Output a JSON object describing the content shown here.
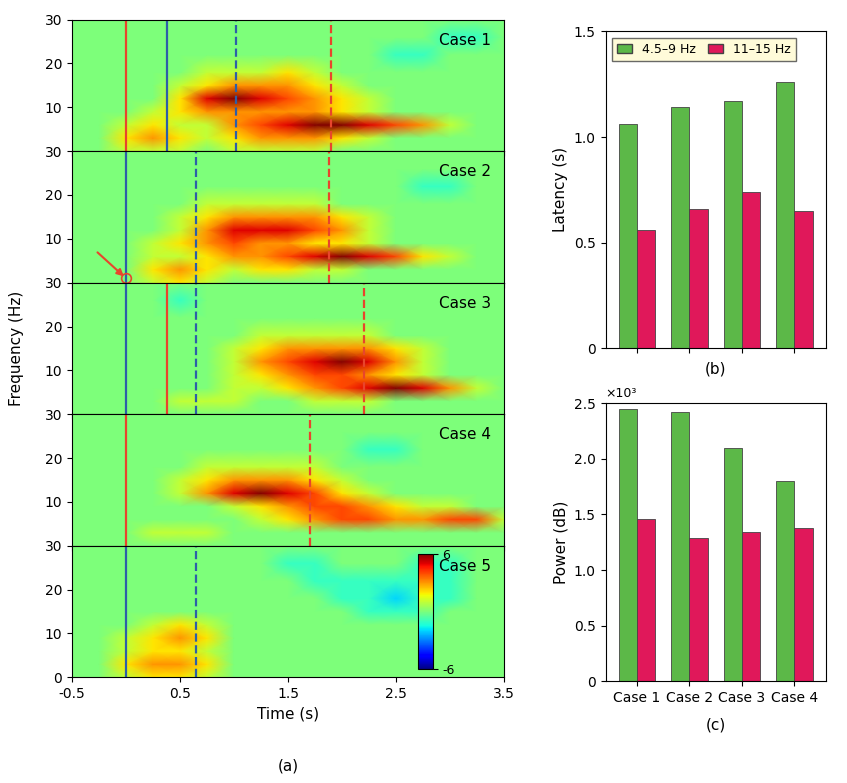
{
  "chart_data": [
    {
      "type": "heatmap",
      "title": "Case 1",
      "tick_labels": "y",
      "xlim": [
        -0.5,
        3.5
      ],
      "xticks": [
        -0.5,
        0.5,
        1.5,
        2.5,
        3.5
      ],
      "ylim": [
        0,
        30
      ],
      "yticks": [
        10,
        20,
        30
      ],
      "x": [
        -0.5,
        -0.25,
        0,
        0.25,
        0.5,
        0.75,
        1.0,
        1.25,
        1.5,
        1.75,
        2.0,
        2.25,
        2.5,
        2.75,
        3.0,
        3.25,
        3.5
      ],
      "y": [
        0,
        3,
        6,
        9,
        12,
        15,
        18,
        22,
        26,
        30
      ],
      "cells": [
        [
          0,
          0,
          1,
          1,
          1,
          0,
          1,
          1,
          1,
          1,
          0,
          0,
          0,
          0,
          0,
          0,
          0
        ],
        [
          0,
          0,
          2,
          3,
          2,
          1,
          2,
          3,
          3,
          3,
          2,
          1,
          0,
          0,
          0,
          0,
          0
        ],
        [
          0,
          0,
          1,
          2,
          1,
          1,
          3,
          4,
          5,
          6,
          6,
          5,
          4,
          3,
          1,
          0,
          0
        ],
        [
          0,
          0,
          0,
          1,
          2,
          3,
          3,
          3,
          3,
          3,
          2,
          1,
          0,
          0,
          0,
          0,
          0
        ],
        [
          0,
          0,
          0,
          0,
          2,
          5,
          6,
          5,
          4,
          3,
          2,
          1,
          0,
          0,
          0,
          0,
          0
        ],
        [
          0,
          0,
          0,
          0,
          1,
          2,
          3,
          3,
          3,
          2,
          1,
          0,
          0,
          0,
          0,
          0,
          0
        ],
        [
          0,
          0,
          0,
          0,
          0,
          1,
          1,
          1,
          2,
          1,
          0,
          0,
          0,
          0,
          0,
          0,
          0
        ],
        [
          0,
          0,
          0,
          0,
          0,
          0,
          0,
          0,
          0,
          0,
          0,
          0,
          -1,
          -1,
          0,
          0,
          0
        ],
        [
          0,
          0,
          0,
          0,
          0,
          0,
          0,
          0,
          0,
          0,
          0,
          0,
          0,
          0,
          -1,
          -1,
          0
        ],
        [
          0,
          0,
          0,
          0,
          0,
          0,
          0,
          0,
          0,
          0,
          0,
          0,
          0,
          0,
          0,
          0,
          0
        ]
      ],
      "lines": [
        {
          "x": 0,
          "color": "#e8452c",
          "line_style": "solid"
        },
        {
          "x": 0.38,
          "color": "#2d5fa8",
          "line_style": "solid"
        },
        {
          "x": 1.02,
          "color": "#2d5fa8",
          "line_style": "dashed"
        },
        {
          "x": 1.9,
          "color": "#e8452c",
          "line_style": "dashed"
        }
      ]
    },
    {
      "type": "heatmap",
      "title": "Case 2",
      "tick_labels": "y",
      "xlim": [
        -0.5,
        3.5
      ],
      "xticks": [
        -0.5,
        0.5,
        1.5,
        2.5,
        3.5
      ],
      "ylim": [
        0,
        30
      ],
      "yticks": [
        10,
        20,
        30
      ],
      "x": [
        -0.5,
        -0.25,
        0,
        0.25,
        0.5,
        0.75,
        1.0,
        1.25,
        1.5,
        1.75,
        2.0,
        2.25,
        2.5,
        2.75,
        3.0,
        3.25,
        3.5
      ],
      "y": [
        0,
        3,
        6,
        9,
        12,
        15,
        18,
        22,
        26,
        30
      ],
      "cells": [
        [
          0,
          0,
          0,
          1,
          2,
          1,
          0,
          0,
          0,
          0,
          0,
          0,
          0,
          0,
          0,
          0,
          0
        ],
        [
          0,
          0,
          0,
          2,
          3,
          2,
          1,
          2,
          2,
          1,
          1,
          0,
          0,
          0,
          0,
          0,
          0
        ],
        [
          0,
          0,
          0,
          1,
          1,
          2,
          3,
          3,
          4,
          5,
          6,
          5,
          4,
          2,
          1,
          0,
          0
        ],
        [
          0,
          0,
          0,
          1,
          2,
          3,
          4,
          3,
          3,
          2,
          2,
          1,
          0,
          0,
          0,
          0,
          0
        ],
        [
          0,
          0,
          0,
          0,
          1,
          3,
          5,
          5,
          5,
          4,
          3,
          1,
          0,
          0,
          0,
          0,
          0
        ],
        [
          0,
          0,
          0,
          0,
          1,
          2,
          3,
          3,
          3,
          3,
          2,
          1,
          0,
          0,
          0,
          0,
          0
        ],
        [
          0,
          0,
          0,
          0,
          0,
          1,
          1,
          1,
          1,
          1,
          0,
          0,
          0,
          0,
          0,
          0,
          0
        ],
        [
          0,
          0,
          0,
          0,
          0,
          0,
          0,
          0,
          0,
          0,
          0,
          0,
          0,
          -1,
          -1,
          0,
          0
        ],
        [
          0,
          0,
          0,
          0,
          0,
          0,
          0,
          0,
          0,
          0,
          0,
          0,
          0,
          0,
          0,
          0,
          0
        ],
        [
          0,
          0,
          0,
          0,
          0,
          0,
          0,
          0,
          0,
          0,
          0,
          0,
          0,
          0,
          0,
          0,
          0
        ]
      ],
      "lines": [
        {
          "x": 0,
          "color": "#2d5fa8",
          "line_style": "solid"
        },
        {
          "x": 0.65,
          "color": "#2d5fa8",
          "line_style": "dashed"
        },
        {
          "x": 1.88,
          "color": "#e8452c",
          "line_style": "dashed"
        }
      ],
      "highlight": {
        "x": 0,
        "y": 1,
        "color": "#e8452c"
      }
    },
    {
      "type": "heatmap",
      "title": "Case 3",
      "tick_labels": "y",
      "ylabel": "Frequency (Hz)",
      "xlim": [
        -0.5,
        3.5
      ],
      "xticks": [
        -0.5,
        0.5,
        1.5,
        2.5,
        3.5
      ],
      "ylim": [
        0,
        30
      ],
      "yticks": [
        10,
        20,
        30
      ],
      "x": [
        -0.5,
        -0.25,
        0,
        0.25,
        0.5,
        0.75,
        1.0,
        1.25,
        1.5,
        1.75,
        2.0,
        2.25,
        2.5,
        2.75,
        3.0,
        3.25,
        3.5
      ],
      "y": [
        0,
        3,
        6,
        9,
        12,
        15,
        18,
        22,
        26,
        30
      ],
      "cells": [
        [
          0,
          0,
          0,
          0,
          0,
          0,
          0,
          0,
          0,
          0,
          0,
          0,
          0,
          0,
          0,
          0,
          0
        ],
        [
          0,
          0,
          0,
          0,
          1,
          1,
          1,
          0,
          0,
          1,
          1,
          1,
          0,
          0,
          0,
          0,
          0
        ],
        [
          0,
          0,
          0,
          0,
          0,
          0,
          1,
          1,
          2,
          3,
          4,
          5,
          6,
          5,
          3,
          1,
          0
        ],
        [
          0,
          0,
          0,
          0,
          0,
          0,
          1,
          2,
          3,
          4,
          4,
          3,
          2,
          1,
          0,
          0,
          0
        ],
        [
          0,
          0,
          0,
          0,
          0,
          0,
          1,
          3,
          4,
          5,
          6,
          5,
          3,
          1,
          0,
          0,
          0
        ],
        [
          0,
          0,
          0,
          0,
          0,
          0,
          1,
          2,
          3,
          3,
          3,
          3,
          2,
          1,
          0,
          0,
          0
        ],
        [
          0,
          0,
          0,
          0,
          0,
          0,
          0,
          1,
          1,
          1,
          1,
          1,
          0,
          0,
          0,
          0,
          0
        ],
        [
          0,
          0,
          0,
          0,
          0,
          0,
          0,
          0,
          0,
          0,
          0,
          0,
          0,
          0,
          0,
          0,
          0
        ],
        [
          0,
          0,
          0,
          0,
          -1,
          0,
          0,
          0,
          0,
          0,
          0,
          0,
          0,
          0,
          0,
          0,
          0
        ],
        [
          0,
          0,
          0,
          0,
          0,
          0,
          0,
          0,
          0,
          0,
          0,
          0,
          0,
          0,
          0,
          0,
          0
        ]
      ],
      "lines": [
        {
          "x": 0,
          "color": "#2d5fa8",
          "line_style": "solid"
        },
        {
          "x": 0.38,
          "color": "#e8452c",
          "line_style": "solid"
        },
        {
          "x": 0.65,
          "color": "#2d5fa8",
          "line_style": "dashed"
        },
        {
          "x": 2.2,
          "color": "#e8452c",
          "line_style": "dashed"
        }
      ]
    },
    {
      "type": "heatmap",
      "title": "Case 4",
      "tick_labels": "y",
      "xlim": [
        -0.5,
        3.5
      ],
      "xticks": [
        -0.5,
        0.5,
        1.5,
        2.5,
        3.5
      ],
      "ylim": [
        0,
        30
      ],
      "yticks": [
        10,
        20,
        30
      ],
      "x": [
        -0.5,
        -0.25,
        0,
        0.25,
        0.5,
        0.75,
        1.0,
        1.25,
        1.5,
        1.75,
        2.0,
        2.25,
        2.5,
        2.75,
        3.0,
        3.25,
        3.5
      ],
      "y": [
        0,
        3,
        6,
        9,
        12,
        15,
        18,
        22,
        26,
        30
      ],
      "cells": [
        [
          0,
          0,
          0,
          0,
          0,
          0,
          0,
          0,
          0,
          0,
          0,
          0,
          0,
          0,
          0,
          0,
          0
        ],
        [
          0,
          0,
          0,
          1,
          1,
          1,
          0,
          0,
          0,
          0,
          0,
          0,
          0,
          0,
          0,
          0,
          0
        ],
        [
          0,
          0,
          0,
          0,
          0,
          0,
          0,
          1,
          2,
          3,
          4,
          4,
          3,
          3,
          4,
          4,
          1
        ],
        [
          0,
          0,
          0,
          0,
          0,
          0,
          1,
          2,
          3,
          4,
          4,
          3,
          2,
          1,
          1,
          0,
          0
        ],
        [
          0,
          0,
          0,
          0,
          1,
          3,
          5,
          6,
          5,
          4,
          2,
          1,
          0,
          0,
          0,
          0,
          0
        ],
        [
          0,
          0,
          0,
          0,
          1,
          2,
          3,
          3,
          3,
          2,
          1,
          0,
          0,
          0,
          0,
          0,
          0
        ],
        [
          0,
          0,
          0,
          0,
          0,
          1,
          1,
          1,
          1,
          1,
          0,
          0,
          0,
          0,
          0,
          0,
          0
        ],
        [
          0,
          0,
          0,
          0,
          0,
          0,
          0,
          0,
          0,
          0,
          0,
          -1,
          -1,
          0,
          0,
          0,
          0
        ],
        [
          0,
          0,
          0,
          0,
          0,
          0,
          0,
          0,
          0,
          0,
          0,
          0,
          0,
          0,
          0,
          0,
          0
        ],
        [
          0,
          0,
          0,
          0,
          0,
          0,
          0,
          0,
          0,
          0,
          0,
          0,
          0,
          0,
          0,
          0,
          0
        ]
      ],
      "lines": [
        {
          "x": 0,
          "color": "#e8452c",
          "line_style": "solid"
        },
        {
          "x": 1.7,
          "color": "#e8452c",
          "line_style": "dashed"
        }
      ]
    },
    {
      "type": "heatmap",
      "title": "Case 5",
      "xlabel": "Time (s)",
      "subtitle": "(a)",
      "xlim": [
        -0.5,
        3.5
      ],
      "xticks": [
        -0.5,
        0.5,
        1.5,
        2.5,
        3.5
      ],
      "ylim": [
        0,
        30
      ],
      "yticks": [
        0,
        10,
        20,
        30
      ],
      "x": [
        -0.5,
        -0.25,
        0,
        0.25,
        0.5,
        0.75,
        1.0,
        1.25,
        1.5,
        1.75,
        2.0,
        2.25,
        2.5,
        2.75,
        3.0,
        3.25,
        3.5
      ],
      "y": [
        0,
        3,
        6,
        9,
        12,
        15,
        18,
        22,
        26,
        30
      ],
      "cells": [
        [
          0,
          0,
          1,
          2,
          2,
          1,
          0,
          0,
          0,
          0,
          0,
          0,
          0,
          0,
          0,
          0,
          0
        ],
        [
          0,
          0,
          2,
          3,
          3,
          2,
          0,
          0,
          0,
          0,
          0,
          0,
          0,
          0,
          0,
          0,
          0
        ],
        [
          0,
          0,
          1,
          2,
          2,
          1,
          0,
          0,
          0,
          0,
          0,
          0,
          0,
          0,
          0,
          0,
          0
        ],
        [
          0,
          0,
          1,
          2,
          3,
          2,
          0,
          0,
          0,
          0,
          0,
          0,
          0,
          0,
          0,
          0,
          0
        ],
        [
          0,
          0,
          0,
          1,
          2,
          1,
          0,
          0,
          0,
          0,
          0,
          0,
          0,
          0,
          0,
          0,
          0
        ],
        [
          0,
          0,
          0,
          0,
          0,
          0,
          0,
          0,
          0,
          0,
          0,
          -1,
          -1,
          -1,
          0,
          0,
          0
        ],
        [
          0,
          0,
          0,
          0,
          0,
          0,
          0,
          0,
          0,
          0,
          -1,
          -1,
          -2,
          -1,
          -1,
          0,
          0
        ],
        [
          0,
          0,
          0,
          0,
          0,
          0,
          0,
          0,
          0,
          -1,
          -1,
          -1,
          -1,
          -1,
          -1,
          0,
          0
        ],
        [
          0,
          0,
          0,
          0,
          0,
          0,
          0,
          0,
          -1,
          -1,
          0,
          0,
          0,
          -1,
          -1,
          0,
          0
        ],
        [
          0,
          0,
          0,
          0,
          0,
          0,
          0,
          0,
          0,
          0,
          0,
          0,
          0,
          0,
          0,
          0,
          0
        ]
      ],
      "lines": [
        {
          "x": 0,
          "color": "#2d5fa8",
          "line_style": "solid"
        },
        {
          "x": 0.65,
          "color": "#2d5fa8",
          "line_style": "dashed"
        }
      ],
      "colorbar": {
        "range": [
          -6,
          6
        ],
        "ticks": [
          -6,
          6
        ]
      }
    },
    {
      "type": "bar",
      "subtitle": "(b)",
      "ylabel": "Latency (s)",
      "tick_labels": "y",
      "legend": "upper left",
      "categories": [
        "Case 1",
        "Case 2",
        "Case 3",
        "Case 4"
      ],
      "series": [
        {
          "name": "4.5–9 Hz",
          "color": "#5cb848",
          "values": [
            1.06,
            1.14,
            1.17,
            1.26
          ]
        },
        {
          "name": "11–15 Hz",
          "color": "#e0185a",
          "values": [
            0.56,
            0.66,
            0.74,
            0.65
          ]
        }
      ],
      "ylim": [
        0,
        1.5
      ],
      "yticks": [
        0,
        0.5,
        1.0,
        1.5
      ]
    },
    {
      "type": "bar",
      "subtitle": "(c)",
      "ylabel": "Power (dB)",
      "annotation": "×10³",
      "categories": [
        "Case 1",
        "Case 2",
        "Case 3",
        "Case 4"
      ],
      "series": [
        {
          "name": "4.5–9 Hz",
          "color": "#5cb848",
          "values": [
            2.45,
            2.42,
            2.1,
            1.8
          ]
        },
        {
          "name": "11–15 Hz",
          "color": "#e0185a",
          "values": [
            1.46,
            1.29,
            1.34,
            1.38
          ]
        }
      ],
      "ylim": [
        0,
        2.5
      ],
      "yticks": [
        0,
        0.5,
        1.0,
        1.5,
        2.0,
        2.5
      ]
    }
  ]
}
